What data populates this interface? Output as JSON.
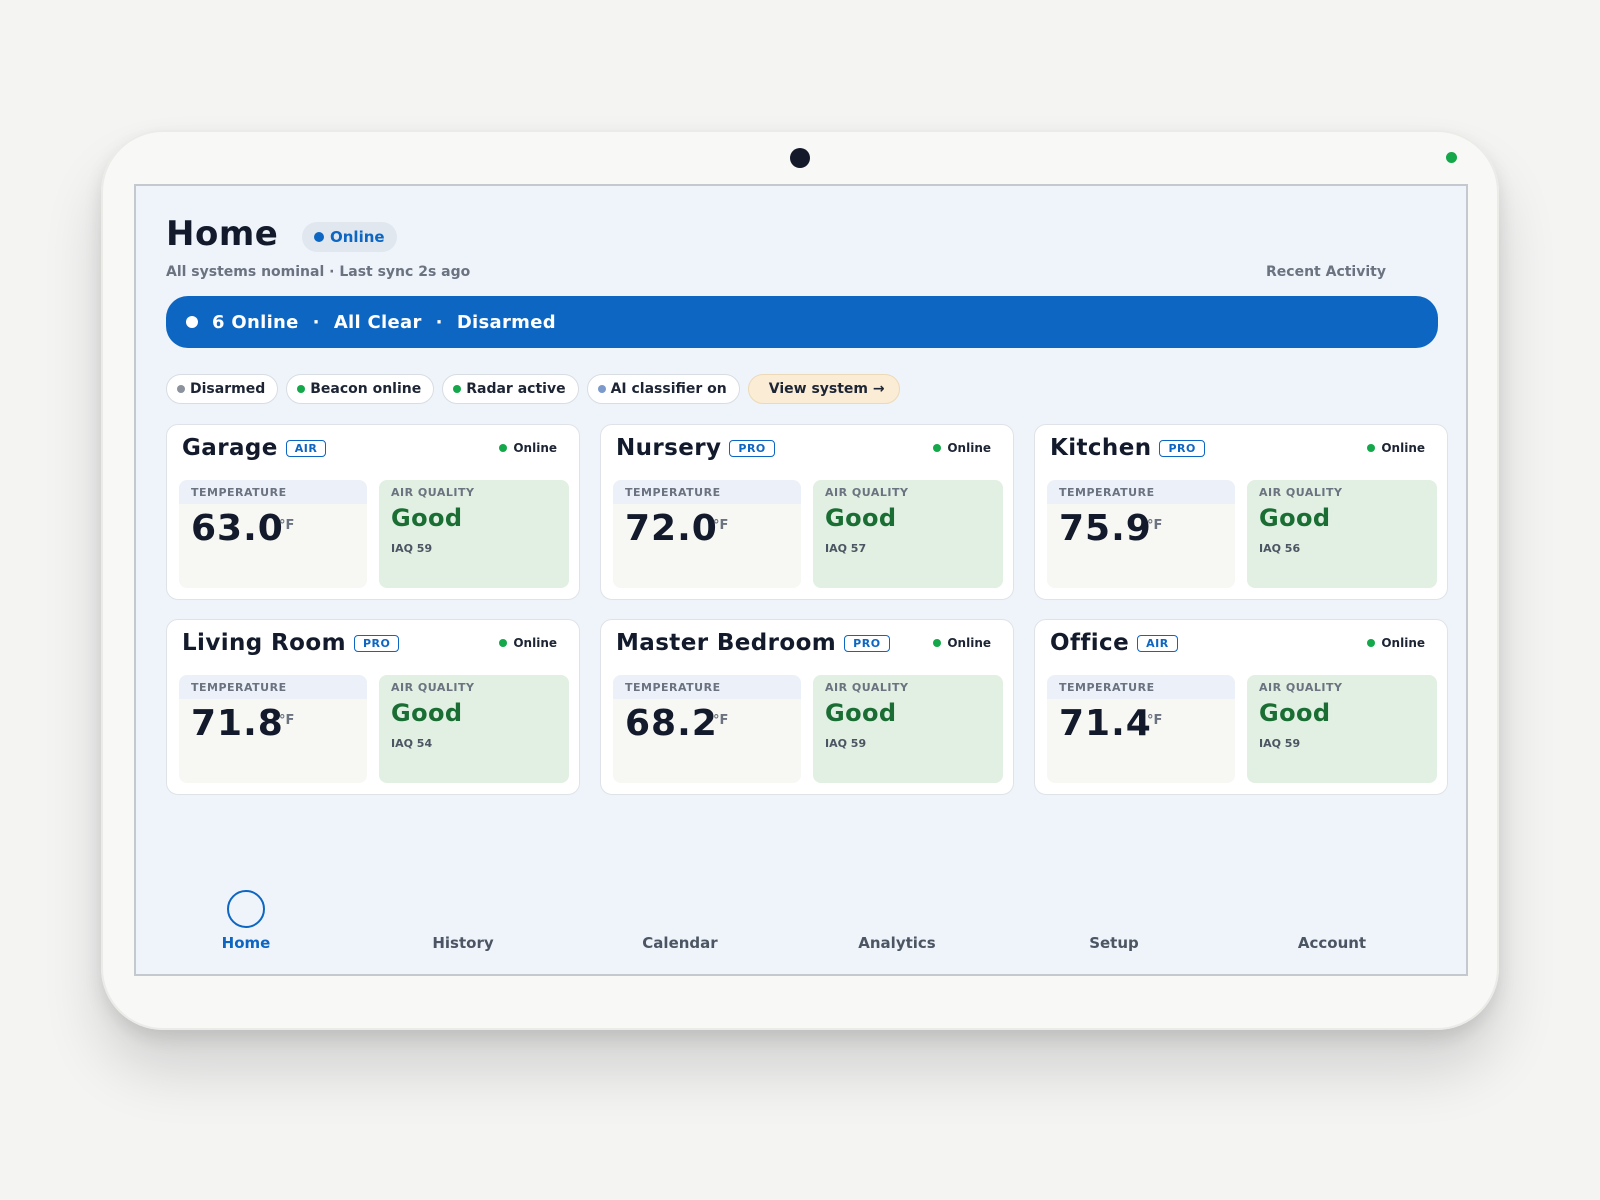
{
  "header": {
    "title": "Home",
    "status": "Online",
    "status_color": "#0d66c2",
    "subtitle": "All systems nominal · Last sync 2s ago",
    "recent_activity": "Recent Activity"
  },
  "banner": {
    "online": "6 Online",
    "separator": "·",
    "alarm": "All Clear",
    "mode": "Disarmed",
    "color": "#0d66c2"
  },
  "chips": [
    {
      "label": "Disarmed",
      "dot_color": "#8b929c"
    },
    {
      "label": "Beacon online",
      "dot_color": "#14a84a"
    },
    {
      "label": "Radar active",
      "dot_color": "#14a84a"
    },
    {
      "label": "AI classifier on",
      "dot_color": "#7b9acb"
    }
  ],
  "view_system": "View system →",
  "card_labels": {
    "temperature": "TEMPERATURE",
    "air_quality": "AIR QUALITY",
    "unit": "°F"
  },
  "rooms": [
    {
      "name": "Garage",
      "tier": "AIR",
      "status": "Online",
      "temperature": "63.0",
      "air_quality": "Good",
      "iaq": "IAQ 59"
    },
    {
      "name": "Nursery",
      "tier": "PRO",
      "status": "Online",
      "temperature": "72.0",
      "air_quality": "Good",
      "iaq": "IAQ 57"
    },
    {
      "name": "Kitchen",
      "tier": "PRO",
      "status": "Online",
      "temperature": "75.9",
      "air_quality": "Good",
      "iaq": "IAQ 56"
    },
    {
      "name": "Living Room",
      "tier": "PRO",
      "status": "Online",
      "temperature": "71.8",
      "air_quality": "Good",
      "iaq": "IAQ 54"
    },
    {
      "name": "Master Bedroom",
      "tier": "PRO",
      "status": "Online",
      "temperature": "68.2",
      "air_quality": "Good",
      "iaq": "IAQ 59"
    },
    {
      "name": "Office",
      "tier": "AIR",
      "status": "Online",
      "temperature": "71.4",
      "air_quality": "Good",
      "iaq": "IAQ 59"
    }
  ],
  "nav": [
    {
      "label": "Home",
      "active": true
    },
    {
      "label": "History",
      "active": false
    },
    {
      "label": "Calendar",
      "active": false
    },
    {
      "label": "Analytics",
      "active": false
    },
    {
      "label": "Setup",
      "active": false
    },
    {
      "label": "Account",
      "active": false
    }
  ],
  "colors": {
    "online_dot": "#14a84a",
    "air_quality_good": "#1a6e34"
  }
}
